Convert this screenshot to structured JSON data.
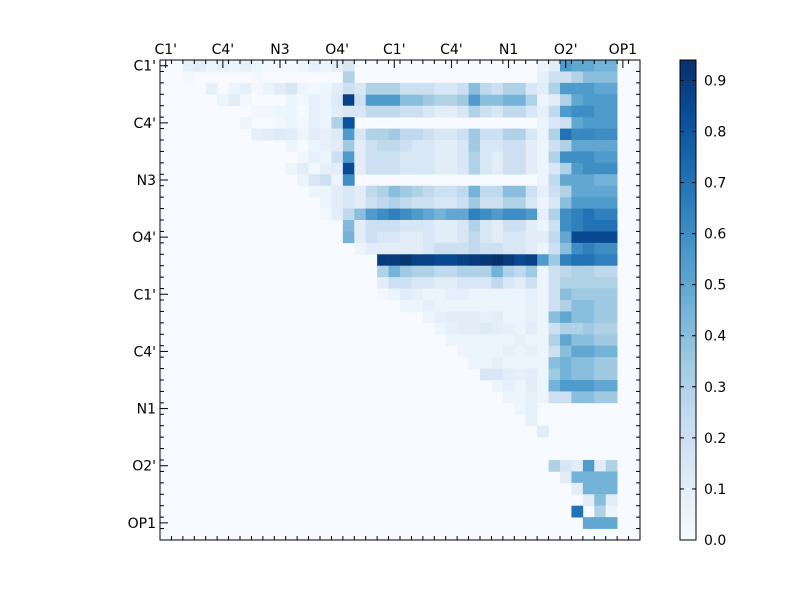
{
  "chart_data": {
    "type": "heatmap",
    "grid_size": 42,
    "x_tick_labels": [
      "C1'",
      "C4'",
      "N3",
      "O4'",
      "C1'",
      "C4'",
      "N1",
      "O2'",
      "OP1"
    ],
    "y_tick_labels": [
      "C1'",
      "C4'",
      "N3",
      "O4'",
      "C1'",
      "C4'",
      "N1",
      "O2'",
      "OP1"
    ],
    "colorbar": {
      "ticks": [
        "0.0",
        "0.1",
        "0.2",
        "0.3",
        "0.4",
        "0.5",
        "0.6",
        "0.7",
        "0.8",
        "0.9"
      ],
      "vmin": 0.0,
      "vmax": 0.94
    },
    "colormap": [
      "#f7fbff",
      "#deebf7",
      "#c6dbef",
      "#9ecae1",
      "#6baed6",
      "#4292c6",
      "#2171b5",
      "#08519c",
      "#08306b"
    ],
    "cells": [
      [
        0,
        2,
        0.08
      ],
      [
        0,
        3,
        0.1
      ],
      [
        0,
        4,
        0.05
      ],
      [
        0,
        5,
        0.08
      ],
      [
        0,
        6,
        0.05
      ],
      [
        0,
        7,
        0.08
      ],
      [
        0,
        8,
        0.05
      ],
      [
        0,
        9,
        0.03
      ],
      [
        0,
        10,
        0.03
      ],
      [
        0,
        11,
        0.02
      ],
      [
        0,
        12,
        0.04
      ],
      [
        0,
        13,
        0.08
      ],
      [
        0,
        14,
        0.05
      ],
      [
        0,
        15,
        0.1
      ],
      [
        0,
        16,
        0.15
      ],
      [
        1,
        2,
        0.02
      ],
      [
        1,
        8,
        0.02
      ],
      [
        1,
        16,
        0.3
      ],
      [
        2,
        4,
        0.08
      ],
      [
        2,
        6,
        0.05
      ],
      [
        2,
        7,
        0.08
      ],
      [
        2,
        8,
        0.03
      ],
      [
        2,
        9,
        0.06
      ],
      [
        2,
        10,
        0.1
      ],
      [
        2,
        11,
        0.15
      ],
      [
        2,
        12,
        0.05
      ],
      [
        2,
        13,
        0.02
      ],
      [
        2,
        14,
        0.05
      ],
      [
        2,
        15,
        0.1
      ],
      [
        2,
        16,
        0.2
      ],
      [
        3,
        5,
        0.05
      ],
      [
        3,
        6,
        0.1
      ],
      [
        3,
        7,
        0.03
      ],
      [
        3,
        11,
        0.05
      ],
      [
        3,
        12,
        0.03
      ],
      [
        3,
        13,
        0.08
      ],
      [
        3,
        14,
        0.05
      ],
      [
        3,
        15,
        0.12
      ],
      [
        3,
        16,
        0.88
      ],
      [
        4,
        8,
        0.03
      ],
      [
        4,
        9,
        0.03
      ],
      [
        4,
        10,
        0.05
      ],
      [
        4,
        11,
        0.05
      ],
      [
        4,
        13,
        0.08
      ],
      [
        4,
        14,
        0.05
      ],
      [
        4,
        15,
        0.1
      ],
      [
        4,
        16,
        0.15
      ],
      [
        5,
        7,
        0.05
      ],
      [
        5,
        10,
        0.03
      ],
      [
        5,
        11,
        0.05
      ],
      [
        5,
        12,
        0.03
      ],
      [
        5,
        13,
        0.08
      ],
      [
        5,
        14,
        0.05
      ],
      [
        5,
        15,
        0.3
      ],
      [
        5,
        16,
        0.82
      ],
      [
        6,
        8,
        0.08
      ],
      [
        6,
        9,
        0.1
      ],
      [
        6,
        10,
        0.12
      ],
      [
        6,
        11,
        0.1
      ],
      [
        6,
        12,
        0.05
      ],
      [
        6,
        13,
        0.1
      ],
      [
        6,
        14,
        0.08
      ],
      [
        6,
        15,
        0.12
      ],
      [
        6,
        16,
        0.55
      ],
      [
        7,
        11,
        0.05
      ],
      [
        7,
        13,
        0.05
      ],
      [
        7,
        14,
        0.08
      ],
      [
        7,
        15,
        0.1
      ],
      [
        7,
        16,
        0.35
      ],
      [
        8,
        12,
        0.03
      ],
      [
        8,
        13,
        0.08
      ],
      [
        8,
        14,
        0.05
      ],
      [
        8,
        15,
        0.2
      ],
      [
        8,
        16,
        0.55
      ],
      [
        9,
        11,
        0.05
      ],
      [
        9,
        12,
        0.1
      ],
      [
        9,
        13,
        0.03
      ],
      [
        9,
        14,
        0.08
      ],
      [
        9,
        15,
        0.1
      ],
      [
        9,
        16,
        0.85
      ],
      [
        10,
        12,
        0.05
      ],
      [
        10,
        13,
        0.15
      ],
      [
        10,
        14,
        0.2
      ],
      [
        10,
        15,
        0.05
      ],
      [
        10,
        16,
        0.6
      ],
      [
        11,
        13,
        0.05
      ],
      [
        11,
        14,
        0.05
      ],
      [
        11,
        15,
        0.1
      ],
      [
        11,
        16,
        0.15
      ],
      [
        12,
        14,
        0.05
      ],
      [
        12,
        15,
        0.1
      ],
      [
        12,
        16,
        0.15
      ],
      [
        13,
        14,
        0.03
      ],
      [
        13,
        15,
        0.3
      ],
      [
        13,
        16,
        0.92
      ],
      [
        14,
        16,
        0.42
      ]
    ],
    "cols": [
      {
        "col": 33,
        "rows": [
          0.05,
          0.08,
          0.1,
          0.05,
          0.08,
          0.05,
          0.05,
          0.05,
          0.05,
          0.05,
          0.05,
          0.08,
          0.05,
          0.08,
          0.05,
          0.1,
          0.05,
          0.55,
          0.05,
          0.05,
          0.05,
          0.05,
          0.05,
          0.05,
          0.05,
          0.05,
          0.05,
          0.05,
          0.05,
          0.05
        ]
      },
      {
        "col": 34,
        "rows": [
          0.1,
          0.2,
          0.3,
          0.1,
          0.25,
          0.15,
          0.3,
          0.2,
          0.3,
          0.15,
          0.25,
          0.2,
          0.15,
          0.3,
          0.2,
          0.25,
          0.2,
          0.35,
          0.2,
          0.2,
          0.2,
          0.2,
          0.4,
          0.2,
          0.3,
          0.2,
          0.4,
          0.35,
          0.45,
          0.2
        ]
      },
      {
        "col": 35,
        "rows": [
          0.55,
          0.2,
          0.55,
          0.3,
          0.55,
          0.2,
          0.7,
          0.3,
          0.6,
          0.3,
          0.5,
          0.3,
          0.4,
          0.6,
          0.6,
          0.5,
          0.4,
          0.65,
          0.25,
          0.3,
          0.4,
          0.3,
          0.5,
          0.3,
          0.5,
          0.4,
          0.45,
          0.45,
          0.55,
          0.2
        ]
      },
      {
        "col": 36,
        "rows": [
          0.5,
          0.3,
          0.55,
          0.5,
          0.6,
          0.5,
          0.62,
          0.5,
          0.6,
          0.55,
          0.5,
          0.5,
          0.55,
          0.65,
          0.65,
          0.85,
          0.6,
          0.7,
          0.3,
          0.3,
          0.35,
          0.4,
          0.4,
          0.3,
          0.4,
          0.5,
          0.4,
          0.4,
          0.55,
          0.4
        ]
      },
      {
        "col": 37,
        "rows": [
          0.5,
          0.4,
          0.55,
          0.55,
          0.6,
          0.55,
          0.62,
          0.5,
          0.6,
          0.6,
          0.5,
          0.5,
          0.55,
          0.7,
          0.7,
          0.85,
          0.65,
          0.7,
          0.3,
          0.3,
          0.35,
          0.4,
          0.4,
          0.35,
          0.4,
          0.5,
          0.4,
          0.4,
          0.55,
          0.4
        ]
      },
      {
        "col": 38,
        "rows": [
          0.45,
          0.4,
          0.5,
          0.55,
          0.55,
          0.55,
          0.6,
          0.5,
          0.55,
          0.6,
          0.45,
          0.5,
          0.55,
          0.65,
          0.7,
          0.85,
          0.6,
          0.65,
          0.25,
          0.3,
          0.35,
          0.35,
          0.35,
          0.3,
          0.35,
          0.45,
          0.35,
          0.35,
          0.5,
          0.35
        ]
      },
      {
        "col": 39,
        "rows": [
          0.45,
          0.4,
          0.5,
          0.55,
          0.55,
          0.55,
          0.6,
          0.5,
          0.55,
          0.6,
          0.45,
          0.5,
          0.55,
          0.65,
          0.7,
          0.85,
          0.6,
          0.65,
          0.25,
          0.3,
          0.35,
          0.35,
          0.35,
          0.3,
          0.35,
          0.45,
          0.35,
          0.35,
          0.5,
          0.35
        ]
      }
    ],
    "bands": [
      {
        "row": 3,
        "from": 17,
        "to": 32,
        "values": [
          0.2,
          0.55,
          0.55,
          0.55,
          0.4,
          0.4,
          0.35,
          0.3,
          0.3,
          0.35,
          0.55,
          0.4,
          0.4,
          0.45,
          0.45,
          0.3
        ]
      },
      {
        "row": 2,
        "from": 17,
        "to": 32,
        "values": [
          0.15,
          0.3,
          0.3,
          0.3,
          0.2,
          0.2,
          0.2,
          0.15,
          0.15,
          0.2,
          0.4,
          0.25,
          0.2,
          0.3,
          0.3,
          0.15
        ]
      },
      {
        "row": 4,
        "from": 17,
        "to": 32,
        "values": [
          0.15,
          0.25,
          0.25,
          0.25,
          0.2,
          0.2,
          0.15,
          0.1,
          0.1,
          0.15,
          0.3,
          0.2,
          0.15,
          0.25,
          0.25,
          0.15
        ]
      },
      {
        "row": 6,
        "from": 17,
        "to": 32,
        "values": [
          0.15,
          0.3,
          0.3,
          0.35,
          0.25,
          0.25,
          0.2,
          0.15,
          0.15,
          0.2,
          0.35,
          0.2,
          0.2,
          0.3,
          0.3,
          0.15
        ]
      },
      {
        "row": 7,
        "from": 17,
        "to": 32,
        "values": [
          0.1,
          0.2,
          0.25,
          0.25,
          0.2,
          0.15,
          0.15,
          0.1,
          0.1,
          0.15,
          0.35,
          0.15,
          0.15,
          0.2,
          0.2,
          0.1
        ]
      },
      {
        "row": 8,
        "from": 17,
        "to": 32,
        "values": [
          0.1,
          0.2,
          0.2,
          0.2,
          0.15,
          0.15,
          0.15,
          0.1,
          0.1,
          0.15,
          0.3,
          0.15,
          0.1,
          0.2,
          0.2,
          0.1
        ]
      },
      {
        "row": 9,
        "from": 17,
        "to": 32,
        "values": [
          0.1,
          0.2,
          0.2,
          0.2,
          0.15,
          0.15,
          0.15,
          0.1,
          0.1,
          0.15,
          0.3,
          0.15,
          0.1,
          0.2,
          0.2,
          0.1
        ]
      },
      {
        "row": 11,
        "from": 17,
        "to": 32,
        "values": [
          0.1,
          0.25,
          0.3,
          0.4,
          0.35,
          0.3,
          0.25,
          0.2,
          0.2,
          0.25,
          0.45,
          0.25,
          0.25,
          0.4,
          0.4,
          0.2
        ]
      },
      {
        "row": 12,
        "from": 17,
        "to": 32,
        "values": [
          0.1,
          0.2,
          0.25,
          0.3,
          0.25,
          0.2,
          0.2,
          0.15,
          0.15,
          0.2,
          0.35,
          0.2,
          0.2,
          0.3,
          0.3,
          0.15
        ]
      },
      {
        "row": 13,
        "from": 15,
        "to": 32,
        "values": [
          0.1,
          0.25,
          0.4,
          0.55,
          0.6,
          0.65,
          0.6,
          0.55,
          0.5,
          0.45,
          0.5,
          0.5,
          0.65,
          0.6,
          0.55,
          0.6,
          0.6,
          0.55
        ]
      },
      {
        "row": 14,
        "from": 17,
        "to": 32,
        "values": [
          0.1,
          0.2,
          0.2,
          0.2,
          0.15,
          0.15,
          0.15,
          0.1,
          0.1,
          0.15,
          0.3,
          0.15,
          0.1,
          0.2,
          0.2,
          0.1
        ]
      },
      {
        "row": 15,
        "from": 16,
        "to": 32,
        "values": [
          0.45,
          0.1,
          0.2,
          0.15,
          0.15,
          0.1,
          0.1,
          0.15,
          0.1,
          0.1,
          0.15,
          0.25,
          0.15,
          0.1,
          0.15,
          0.15,
          0.1
        ]
      },
      {
        "row": 16,
        "from": 17,
        "to": 32,
        "values": [
          0.05,
          0.1,
          0.1,
          0.1,
          0.1,
          0.1,
          0.15,
          0.2,
          0.2,
          0.2,
          0.25,
          0.2,
          0.2,
          0.15,
          0.15,
          0.1
        ]
      },
      {
        "row": 17,
        "from": 19,
        "to": 32,
        "values": [
          0.9,
          0.9,
          0.92,
          0.88,
          0.88,
          0.85,
          0.85,
          0.88,
          0.9,
          0.92,
          0.94,
          0.9,
          0.85,
          0.88
        ]
      },
      {
        "row": 18,
        "from": 19,
        "to": 32,
        "values": [
          0.3,
          0.45,
          0.35,
          0.3,
          0.3,
          0.25,
          0.25,
          0.3,
          0.3,
          0.3,
          0.45,
          0.3,
          0.25,
          0.35
        ]
      },
      {
        "row": 19,
        "from": 19,
        "to": 32,
        "values": [
          0.1,
          0.2,
          0.2,
          0.15,
          0.15,
          0.1,
          0.1,
          0.15,
          0.15,
          0.15,
          0.25,
          0.15,
          0.1,
          0.2
        ]
      },
      {
        "row": 20,
        "from": 19,
        "to": 32,
        "values": [
          0.02,
          0.03,
          0.03,
          0.03,
          0.03,
          0.03,
          0.03,
          0.03,
          0.03,
          0.03,
          0.03,
          0.03,
          0.03,
          0.03
        ]
      },
      {
        "row": 20,
        "from": 20,
        "to": 32,
        "values": [
          0.05,
          0.1,
          0.08,
          0.05,
          0.05,
          0.08,
          0.08,
          0.05,
          0.05,
          0.05,
          0.05,
          0.05,
          0.08
        ]
      },
      {
        "row": 21,
        "from": 21,
        "to": 32,
        "values": [
          0.05,
          0.05,
          0.08,
          0.05,
          0.05,
          0.05,
          0.05,
          0.05,
          0.05,
          0.05,
          0.05,
          0.08
        ]
      },
      {
        "row": 22,
        "from": 23,
        "to": 32,
        "values": [
          0.05,
          0.08,
          0.1,
          0.1,
          0.1,
          0.08,
          0.1,
          0.05,
          0.05,
          0.08
        ]
      },
      {
        "row": 23,
        "from": 24,
        "to": 32,
        "values": [
          0.05,
          0.08,
          0.1,
          0.1,
          0.12,
          0.1,
          0.08,
          0.05,
          0.1
        ]
      },
      {
        "row": 24,
        "from": 25,
        "to": 32,
        "values": [
          0.05,
          0.05,
          0.05,
          0.05,
          0.05,
          0.05,
          0.08,
          0.05
        ]
      },
      {
        "row": 25,
        "from": 26,
        "to": 32,
        "values": [
          0.05,
          0.05,
          0.05,
          0.05,
          0.08,
          0.05,
          0.08
        ]
      },
      {
        "row": 26,
        "from": 27,
        "to": 32,
        "values": [
          0.05,
          0.05,
          0.08,
          0.05,
          0.05,
          0.05
        ]
      },
      {
        "row": 27,
        "from": 28,
        "to": 32,
        "values": [
          0.15,
          0.15,
          0.1,
          0.08,
          0.1
        ]
      },
      {
        "row": 28,
        "from": 29,
        "to": 32,
        "values": [
          0.05,
          0.08,
          0.05,
          0.1
        ]
      },
      {
        "row": 29,
        "from": 30,
        "to": 32,
        "values": [
          0.05,
          0.05,
          0.08
        ]
      },
      {
        "row": 30,
        "from": 31,
        "to": 32,
        "values": [
          0.05,
          0.08
        ]
      },
      {
        "row": 31,
        "from": 32,
        "to": 32,
        "values": [
          0.08
        ]
      },
      {
        "row": 32,
        "from": 33,
        "to": 33,
        "values": [
          0.1
        ]
      },
      {
        "row": 35,
        "from": 34,
        "to": 39,
        "values": [
          0.3,
          0.15,
          0.1,
          0.55,
          0.1,
          0.3
        ]
      },
      {
        "row": 36,
        "from": 35,
        "to": 39,
        "values": [
          0.1,
          0.3,
          0.1,
          0.5,
          0.2
        ]
      },
      {
        "row": 37,
        "from": 36,
        "to": 39,
        "values": [
          0.1,
          0.3,
          0.1,
          0.3
        ]
      },
      {
        "row": 38,
        "from": 37,
        "to": 39,
        "values": [
          0.1,
          0.45,
          0.1
        ]
      },
      {
        "row": 39,
        "from": 38,
        "to": 39,
        "values": [
          0.3,
          0.05
        ]
      },
      {
        "row": 40,
        "from": 39,
        "to": 39,
        "values": [
          0.5
        ]
      }
    ],
    "rows_extra": [
      {
        "row": 36,
        "from": 36,
        "to": 39,
        "values": [
          0.45,
          0.45,
          0.45,
          0.45
        ]
      },
      {
        "row": 37,
        "from": 37,
        "to": 39,
        "values": [
          0.45,
          0.45,
          0.45
        ]
      },
      {
        "row": 38,
        "from": 37,
        "to": 39,
        "values": [
          0.1,
          0.4,
          0.1
        ]
      },
      {
        "row": 39,
        "from": 36,
        "to": 36,
        "values": [
          0.7
        ]
      },
      {
        "row": 40,
        "from": 37,
        "to": 39,
        "values": [
          0.5,
          0.5,
          0.5
        ]
      }
    ]
  }
}
